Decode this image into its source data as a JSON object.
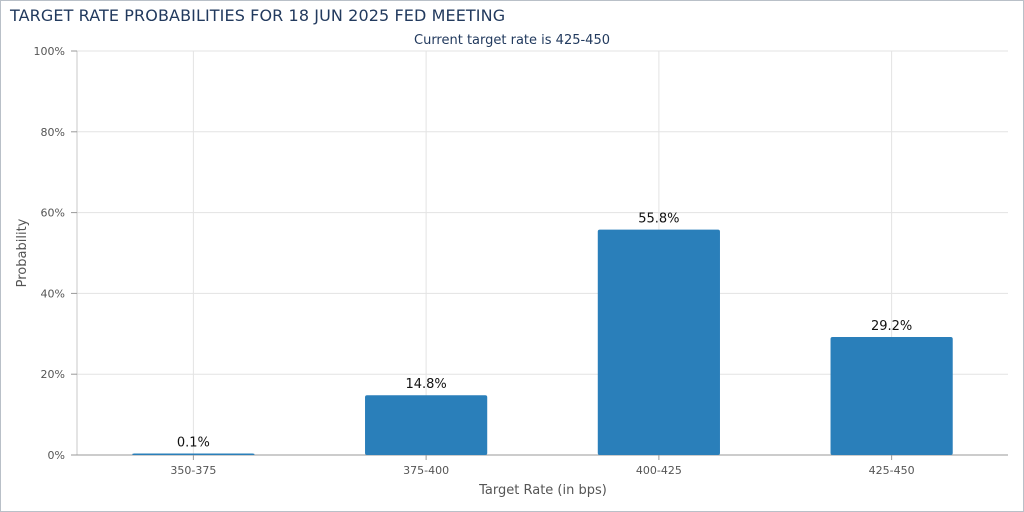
{
  "chart_data": {
    "type": "bar",
    "title": "TARGET RATE PROBABILITIES FOR 18 JUN 2025 FED MEETING",
    "subtitle": "Current target rate is 425-450",
    "xlabel": "Target Rate (in bps)",
    "ylabel": "Probability",
    "categories": [
      "350-375",
      "375-400",
      "400-425",
      "425-450"
    ],
    "values": [
      0.1,
      14.8,
      55.8,
      29.2
    ],
    "value_labels": [
      "0.1%",
      "14.8%",
      "55.8%",
      "29.2%"
    ],
    "ylim": [
      0,
      100
    ],
    "yticks": [
      0,
      20,
      40,
      60,
      80,
      100
    ],
    "ytick_labels": [
      "0%",
      "20%",
      "40%",
      "60%",
      "80%",
      "100%"
    ],
    "grid": true,
    "bar_color": "#2a7fba"
  }
}
